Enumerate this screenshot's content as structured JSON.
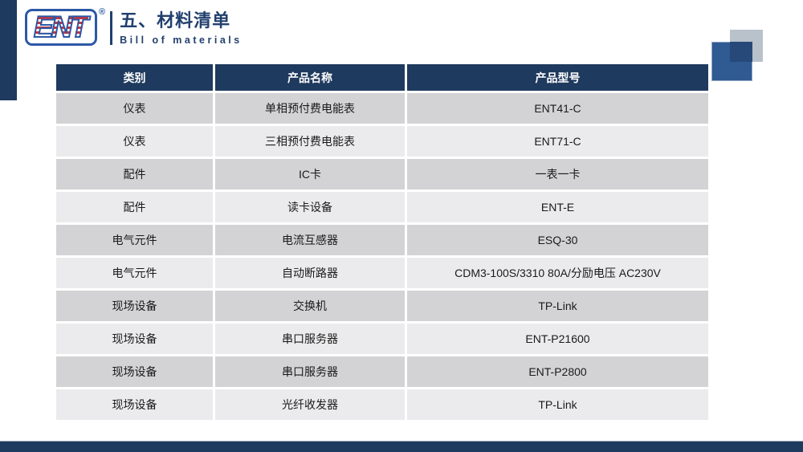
{
  "header": {
    "logo_text": "ENT",
    "registered_mark": "®",
    "title": "五、材料清单",
    "subtitle": "Bill of materials"
  },
  "table": {
    "headers": [
      "类别",
      "产品名称",
      "产品型号"
    ],
    "rows": [
      [
        "仪表",
        "单相预付费电能表",
        "ENT41-C"
      ],
      [
        "仪表",
        "三相预付费电能表",
        "ENT71-C"
      ],
      [
        "配件",
        "IC卡",
        "一表一卡"
      ],
      [
        "配件",
        "读卡设备",
        "ENT-E"
      ],
      [
        "电气元件",
        "电流互感器",
        "ESQ-30"
      ],
      [
        "电气元件",
        "自动断路器",
        "CDM3-100S/3310 80A/分励电压 AC230V"
      ],
      [
        "现场设备",
        "交换机",
        "TP-Link"
      ],
      [
        "现场设备",
        "串口服务器",
        "ENT-P21600"
      ],
      [
        "现场设备",
        "串口服务器",
        "ENT-P2800"
      ],
      [
        "现场设备",
        "光纤收发器",
        "TP-Link"
      ]
    ]
  },
  "colors": {
    "navy": "#1e3a5e",
    "title_blue": "#22406e",
    "logo_blue": "#2c58a6",
    "logo_red": "#cf3339",
    "row_dark": "#d3d3d5",
    "row_light": "#ebebed",
    "square_blue": "#2f5a92",
    "square_gray": "#b9c1cb",
    "square_overlap": "#27497a"
  }
}
